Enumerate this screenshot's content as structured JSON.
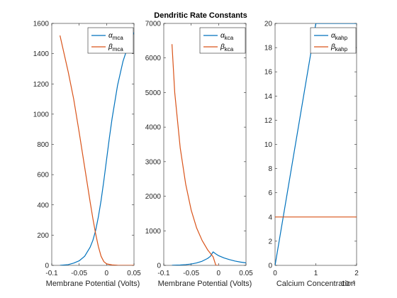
{
  "figure_title": "Dendritic Rate Constants",
  "colors": {
    "series1": "#0072BD",
    "series2": "#D95319",
    "axis": "#262626"
  },
  "chart_data": [
    {
      "type": "line",
      "xlabel": "Membrane Potential (Volts)",
      "ylabel": "",
      "xlim": [
        -0.1,
        0.05
      ],
      "ylim": [
        0,
        1600
      ],
      "xticks": [
        -0.1,
        -0.05,
        0,
        0.05
      ],
      "xtick_labels": [
        "-0.1",
        "-0.05",
        "0",
        "0.05"
      ],
      "yticks": [
        0,
        200,
        400,
        600,
        800,
        1000,
        1200,
        1400,
        1600
      ],
      "ytick_labels": [
        "0",
        "200",
        "400",
        "600",
        "800",
        "1000",
        "1200",
        "1400",
        "1600"
      ],
      "legend_position": "top-right",
      "grid": false,
      "series": [
        {
          "name": "α",
          "sub": "mca",
          "x": [
            -0.085,
            -0.07,
            -0.06,
            -0.05,
            -0.04,
            -0.03,
            -0.025,
            -0.02,
            -0.015,
            -0.01,
            -0.005,
            0,
            0.005,
            0.01,
            0.02,
            0.03,
            0.04,
            0.05
          ],
          "y": [
            0,
            5,
            15,
            30,
            60,
            120,
            165,
            230,
            320,
            430,
            560,
            700,
            840,
            970,
            1190,
            1350,
            1460,
            1540
          ]
        },
        {
          "name": "β",
          "sub": "mca",
          "x": [
            -0.085,
            -0.07,
            -0.06,
            -0.05,
            -0.04,
            -0.03,
            -0.025,
            -0.02,
            -0.015,
            -0.01,
            -0.005,
            0,
            0.01,
            0.02,
            0.03,
            0.05
          ],
          "y": [
            1520,
            1280,
            1100,
            880,
            650,
            420,
            310,
            210,
            125,
            60,
            25,
            10,
            3,
            1,
            0,
            0
          ]
        }
      ]
    },
    {
      "type": "line",
      "xlabel": "Membrane Potential (Volts)",
      "ylabel": "",
      "xlim": [
        -0.1,
        0.05
      ],
      "ylim": [
        0,
        7000
      ],
      "xticks": [
        -0.1,
        -0.05,
        0,
        0.05
      ],
      "xtick_labels": [
        "-0.1",
        "-0.05",
        "0",
        "0.05"
      ],
      "yticks": [
        0,
        1000,
        2000,
        3000,
        4000,
        5000,
        6000,
        7000
      ],
      "ytick_labels": [
        "0",
        "1000",
        "2000",
        "3000",
        "4000",
        "5000",
        "6000",
        "7000"
      ],
      "legend_position": "top-right",
      "grid": false,
      "series": [
        {
          "name": "α",
          "sub": "kca",
          "x": [
            -0.085,
            -0.07,
            -0.06,
            -0.05,
            -0.04,
            -0.03,
            -0.02,
            -0.015,
            -0.01,
            -0.005,
            0,
            0.01,
            0.02,
            0.03,
            0.04,
            0.05
          ],
          "y": [
            2,
            10,
            22,
            40,
            70,
            120,
            200,
            260,
            390,
            330,
            280,
            215,
            165,
            125,
            95,
            72
          ]
        },
        {
          "name": "β",
          "sub": "kca",
          "x": [
            -0.085,
            -0.08,
            -0.07,
            -0.06,
            -0.05,
            -0.04,
            -0.03,
            -0.02,
            -0.015,
            -0.01,
            -0.005,
            0
          ],
          "y": [
            6400,
            5000,
            3400,
            2350,
            1600,
            1080,
            720,
            450,
            350,
            250,
            0,
            0
          ]
        }
      ]
    },
    {
      "type": "line",
      "xlabel": "Calcium Concentration",
      "x_exponent": "10⁻³",
      "ylabel": "",
      "xlim": [
        0,
        2
      ],
      "ylim": [
        0,
        20
      ],
      "xticks": [
        0,
        1,
        2
      ],
      "xtick_labels": [
        "0",
        "1",
        "2"
      ],
      "yticks": [
        0,
        2,
        4,
        6,
        8,
        10,
        12,
        14,
        16,
        18,
        20
      ],
      "ytick_labels": [
        "0",
        "2",
        "4",
        "6",
        "8",
        "10",
        "12",
        "14",
        "16",
        "18",
        "20"
      ],
      "legend_position": "top-right",
      "grid": false,
      "series": [
        {
          "name": "α",
          "sub": "kahp",
          "x": [
            0,
            1,
            2
          ],
          "y": [
            0,
            20,
            20
          ]
        },
        {
          "name": "β",
          "sub": "kahp",
          "x": [
            0,
            2
          ],
          "y": [
            4,
            4
          ]
        }
      ]
    }
  ]
}
